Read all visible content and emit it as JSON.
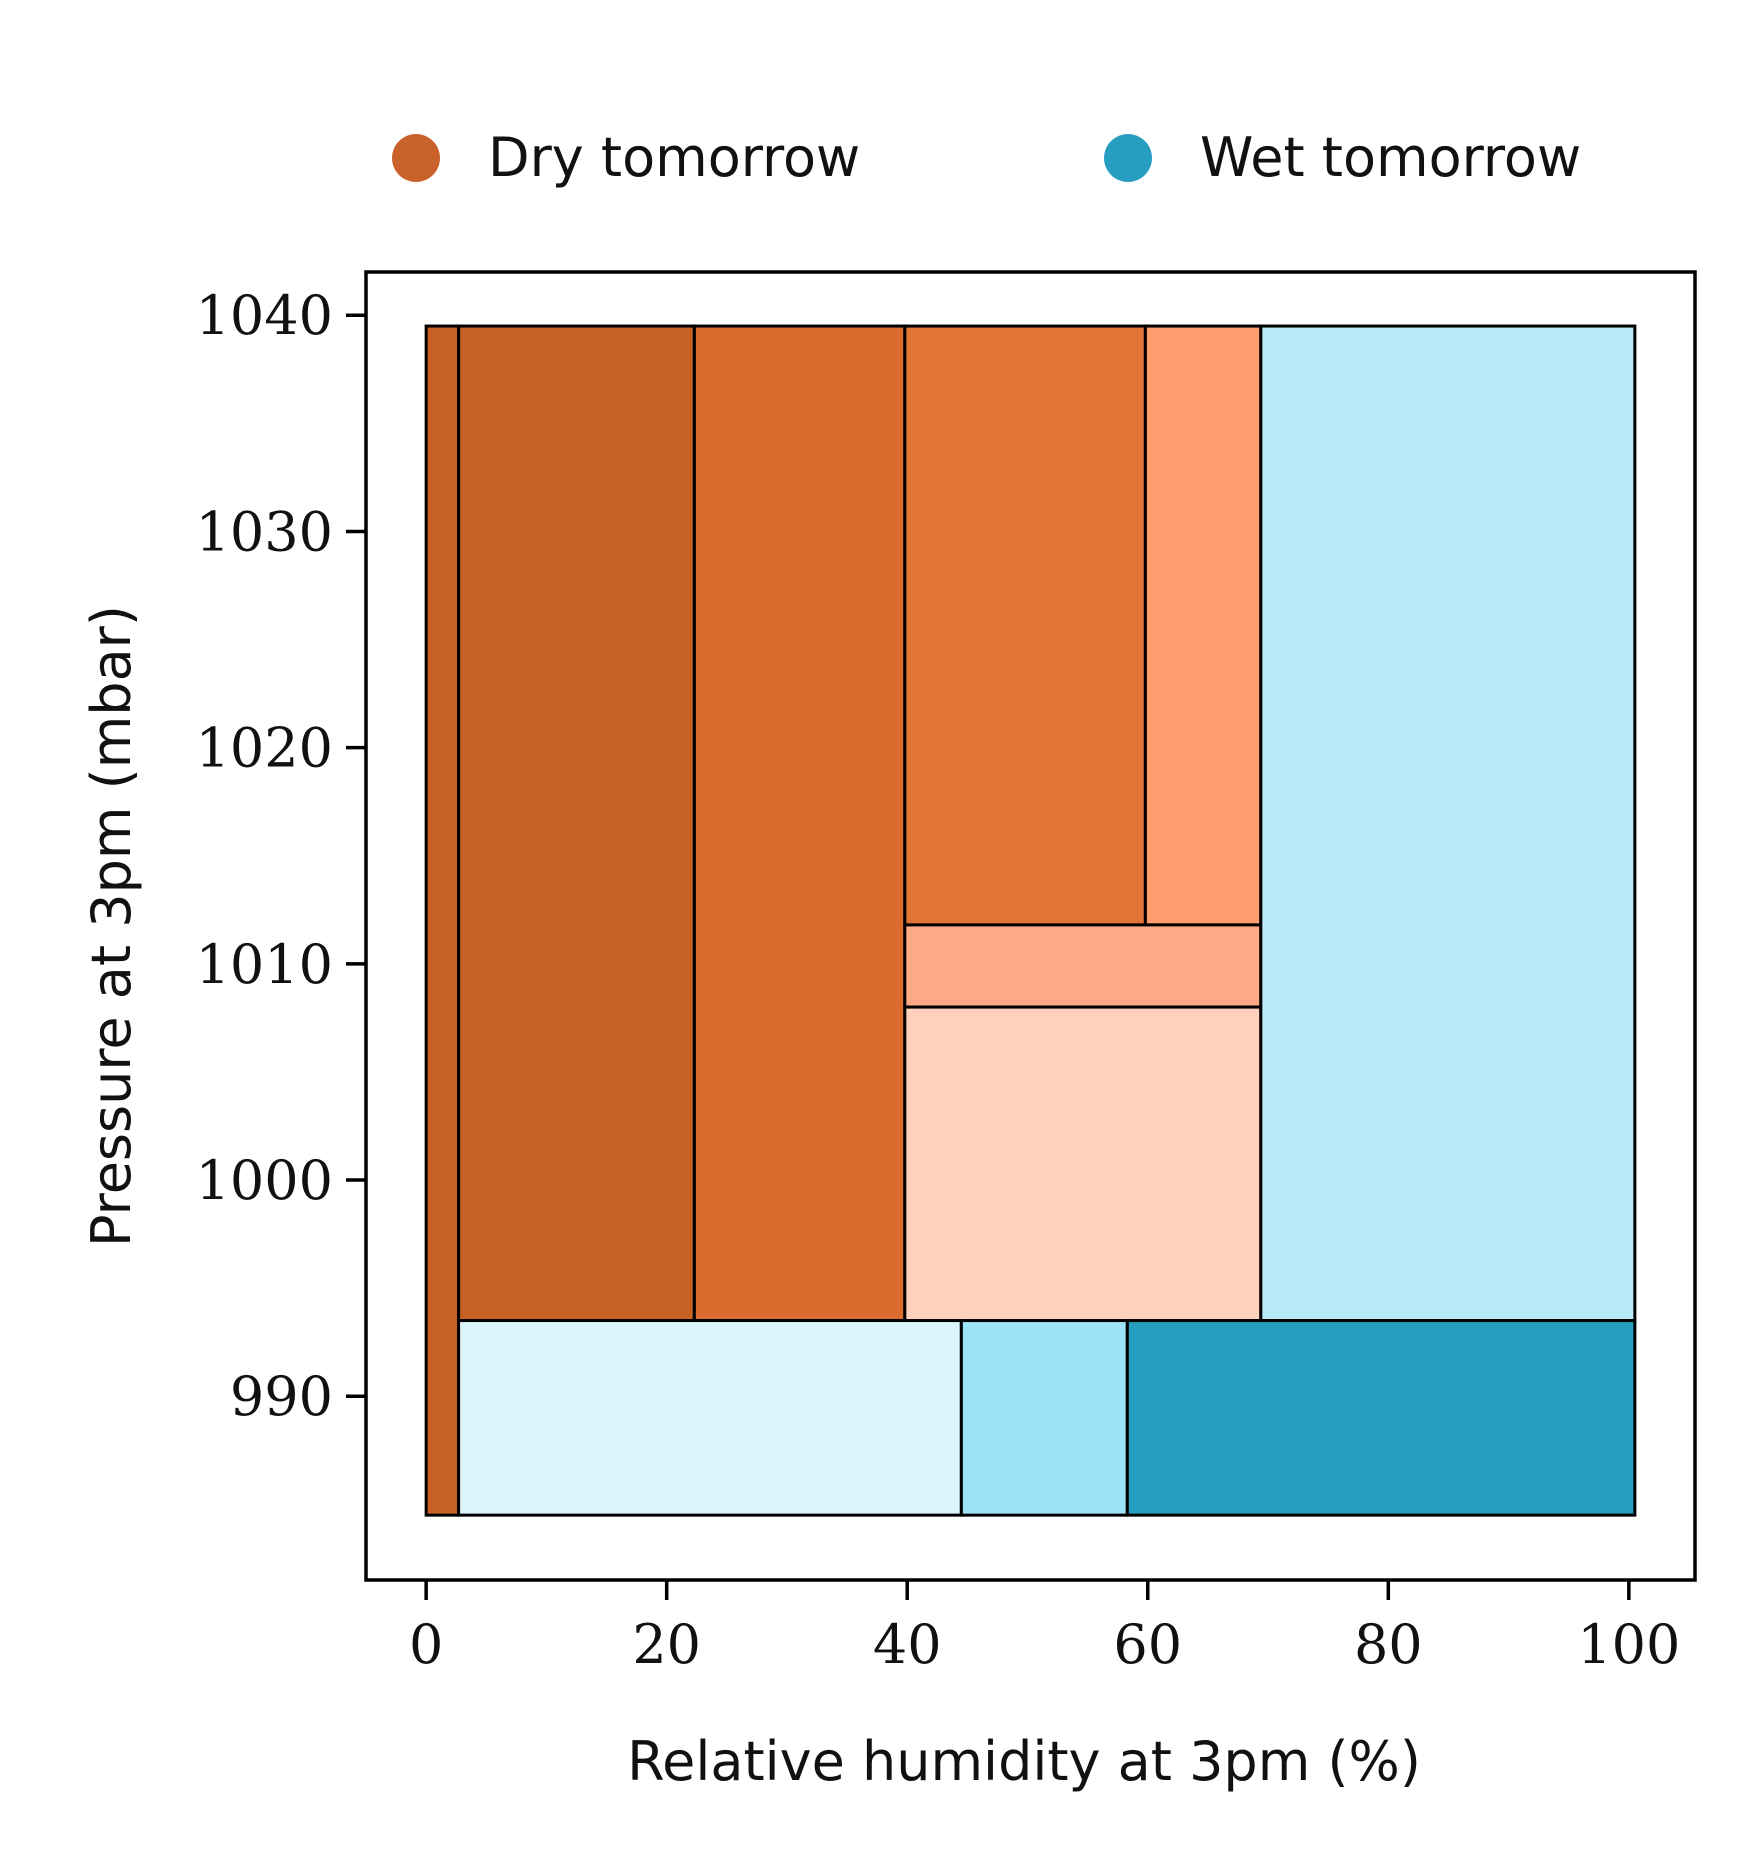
{
  "chart_data": {
    "type": "decision-region",
    "xlabel": "Relative humidity at 3pm (%)",
    "ylabel": "Pressure at 3pm (mbar)",
    "xlim": [
      -5,
      105.5
    ],
    "ylim": [
      981.5,
      1042
    ],
    "xticks": [
      "0",
      "20",
      "40",
      "60",
      "80",
      "100"
    ],
    "yticks": [
      "990",
      "1000",
      "1010",
      "1020",
      "1030",
      "1040"
    ],
    "legend": {
      "placement": "top",
      "entries": [
        {
          "label": "Dry tomorrow",
          "color": "#c9612a"
        },
        {
          "label": "Wet tomorrow",
          "color": "#279dc0"
        }
      ]
    },
    "regions": [
      {
        "class": "Dry tomorrow",
        "x": [
          0,
          2.7
        ],
        "y": [
          984.5,
          1039.5
        ],
        "color": "#c86125"
      },
      {
        "class": "Dry tomorrow",
        "x": [
          2.7,
          22.3
        ],
        "y": [
          993.5,
          1039.5
        ],
        "color": "#c86125"
      },
      {
        "class": "Dry tomorrow",
        "x": [
          22.3,
          39.8
        ],
        "y": [
          993.5,
          1039.5
        ],
        "color": "#d96c2e"
      },
      {
        "class": "Dry tomorrow",
        "x": [
          39.8,
          59.8
        ],
        "y": [
          1011.8,
          1039.5
        ],
        "color": "#e27435"
      },
      {
        "class": "Dry tomorrow",
        "x": [
          59.8,
          69.4
        ],
        "y": [
          1011.8,
          1039.5
        ],
        "color": "#fe9d6f"
      },
      {
        "class": "Dry tomorrow",
        "x": [
          39.8,
          69.4
        ],
        "y": [
          1008.0,
          1011.8
        ],
        "color": "#fea985"
      },
      {
        "class": "Dry tomorrow",
        "x": [
          39.8,
          69.4
        ],
        "y": [
          993.5,
          1008.0
        ],
        "color": "#fed1bc"
      },
      {
        "class": "Wet tomorrow",
        "x": [
          69.4,
          100.5
        ],
        "y": [
          993.5,
          1039.5
        ],
        "color": "#b8eaf7"
      },
      {
        "class": "Wet tomorrow",
        "x": [
          2.7,
          44.5
        ],
        "y": [
          984.5,
          993.5
        ],
        "color": "#dbf5fb"
      },
      {
        "class": "Wet tomorrow",
        "x": [
          44.5,
          58.3
        ],
        "y": [
          984.5,
          993.5
        ],
        "color": "#9de3f6"
      },
      {
        "class": "Wet tomorrow",
        "x": [
          58.3,
          100.5
        ],
        "y": [
          984.5,
          993.5
        ],
        "color": "#269ebf"
      }
    ]
  }
}
